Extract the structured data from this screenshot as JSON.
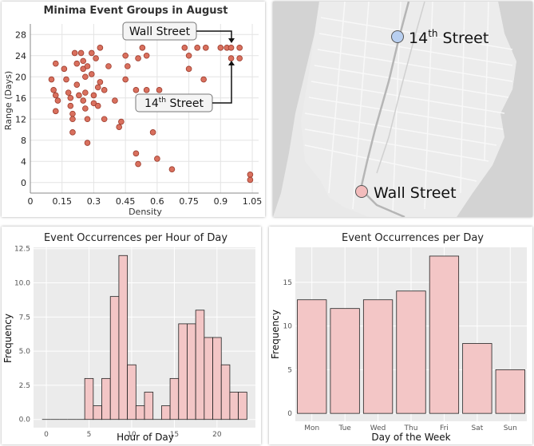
{
  "scatter": {
    "title": "Minima Event Groups in August",
    "xlabel": "Density",
    "ylabel": "Range (Days)",
    "chart_data": {
      "type": "scatter",
      "title": "Minima Event Groups in August",
      "xlabel": "Density",
      "ylabel": "Range (Days)",
      "xlim": [
        0,
        1.08
      ],
      "ylim": [
        -2,
        30
      ],
      "xticks": [
        "0",
        "0.15",
        "0.3",
        "0.45",
        "0.6",
        "0.75",
        "0.9",
        "1.05"
      ],
      "xtick_values": [
        0,
        0.15,
        0.3,
        0.45,
        0.6,
        0.75,
        0.9,
        1.05
      ],
      "yticks": [
        "0",
        "4",
        "8",
        "12",
        "16",
        "20",
        "24",
        "28"
      ],
      "ytick_values": [
        0,
        4,
        8,
        12,
        16,
        20,
        24,
        28
      ],
      "color": "#d9705e",
      "points": [
        [
          0.1,
          19.5
        ],
        [
          0.12,
          22.5
        ],
        [
          0.11,
          17.5
        ],
        [
          0.12,
          16.5
        ],
        [
          0.13,
          15.5
        ],
        [
          0.12,
          13.5
        ],
        [
          0.16,
          21.5
        ],
        [
          0.17,
          19.5
        ],
        [
          0.18,
          17.0
        ],
        [
          0.19,
          16.0
        ],
        [
          0.19,
          14.5
        ],
        [
          0.2,
          13.0
        ],
        [
          0.2,
          12.0
        ],
        [
          0.2,
          9.5
        ],
        [
          0.21,
          24.5
        ],
        [
          0.22,
          22.5
        ],
        [
          0.22,
          18.5
        ],
        [
          0.23,
          16.5
        ],
        [
          0.24,
          24.5
        ],
        [
          0.25,
          23.0
        ],
        [
          0.25,
          21.5
        ],
        [
          0.25,
          15.5
        ],
        [
          0.26,
          20.0
        ],
        [
          0.26,
          17.0
        ],
        [
          0.26,
          14.0
        ],
        [
          0.27,
          22.0
        ],
        [
          0.27,
          12.0
        ],
        [
          0.27,
          7.5
        ],
        [
          0.29,
          24.5
        ],
        [
          0.29,
          20.5
        ],
        [
          0.3,
          16.5
        ],
        [
          0.3,
          15.0
        ],
        [
          0.31,
          23.5
        ],
        [
          0.32,
          18.0
        ],
        [
          0.32,
          14.5
        ],
        [
          0.33,
          25.5
        ],
        [
          0.33,
          19.0
        ],
        [
          0.35,
          17.5
        ],
        [
          0.35,
          12.0
        ],
        [
          0.37,
          22.0
        ],
        [
          0.4,
          15.5
        ],
        [
          0.42,
          10.5
        ],
        [
          0.43,
          11.5
        ],
        [
          0.45,
          24.0
        ],
        [
          0.45,
          19.5
        ],
        [
          0.46,
          22.0
        ],
        [
          0.5,
          17.5
        ],
        [
          0.5,
          5.5
        ],
        [
          0.51,
          23.5
        ],
        [
          0.51,
          3.5
        ],
        [
          0.53,
          25.5
        ],
        [
          0.54,
          14.0
        ],
        [
          0.55,
          24.0
        ],
        [
          0.55,
          17.5
        ],
        [
          0.58,
          9.5
        ],
        [
          0.6,
          4.5
        ],
        [
          0.61,
          17.5
        ],
        [
          0.67,
          2.5
        ],
        [
          0.73,
          25.5
        ],
        [
          0.75,
          24.0
        ],
        [
          0.75,
          21.5
        ],
        [
          0.79,
          25.5
        ],
        [
          0.82,
          19.5
        ],
        [
          0.83,
          25.5
        ],
        [
          0.9,
          25.5
        ],
        [
          0.93,
          25.5
        ],
        [
          0.95,
          25.5
        ],
        [
          0.95,
          23.5
        ],
        [
          0.99,
          25.5
        ],
        [
          0.99,
          23.5
        ],
        [
          1.04,
          1.5
        ],
        [
          1.04,
          0.5
        ]
      ],
      "annotations": [
        {
          "text": "Wall Street",
          "points_to": [
            0.99,
            25.5
          ]
        },
        {
          "text": "14th Street",
          "points_to": [
            0.99,
            23.5
          ]
        }
      ]
    },
    "annotation_wall": "Wall Street",
    "annotation_14_base": "14",
    "annotation_14_sup": "th",
    "annotation_14_rest": " Street"
  },
  "map": {
    "label_14_base": "14",
    "label_14_sup": "th",
    "label_14_rest": " Street",
    "label_wall": "Wall Street",
    "marker_14_color": "#b8cff0",
    "marker_wall_color": "#f3bcbc",
    "street_labels": []
  },
  "hourly": {
    "title": "Event Occurrences per Hour of Day",
    "xlabel": "Hour of Day",
    "ylabel": "Frequency",
    "chart_data": {
      "type": "bar",
      "title": "Event Occurrences per Hour of Day",
      "xlabel": "Hour of Day",
      "ylabel": "Frequency",
      "categories": [
        0,
        1,
        2,
        3,
        4,
        5,
        6,
        7,
        8,
        9,
        10,
        11,
        12,
        13,
        14,
        15,
        16,
        17,
        18,
        19,
        20,
        21,
        22,
        23
      ],
      "values": [
        0,
        0,
        0,
        0,
        0,
        3,
        1,
        3,
        9,
        12,
        4,
        1,
        2,
        0,
        1,
        3,
        7,
        7,
        8,
        6,
        6,
        4,
        2,
        2
      ],
      "xlim": [
        -1.5,
        24.5
      ],
      "ylim": [
        -0.6,
        12.6
      ],
      "xticks": [
        "0",
        "5",
        "10",
        "15",
        "20"
      ],
      "xtick_values": [
        0,
        5,
        10,
        15,
        20
      ],
      "yticks": [
        "0.0",
        "2.5",
        "5.0",
        "7.5",
        "10.0",
        "12.5"
      ],
      "ytick_values": [
        0,
        2.5,
        5,
        7.5,
        10,
        12.5
      ],
      "bar_color": "#f3c6c6"
    }
  },
  "daily": {
    "title": "Event Occurrences per Day",
    "xlabel": "Day of the Week",
    "ylabel": "Frequency",
    "chart_data": {
      "type": "bar",
      "title": "Event Occurrences per Day",
      "xlabel": "Day of the Week",
      "ylabel": "Frequency",
      "categories": [
        "Mon",
        "Tue",
        "Wed",
        "Thu",
        "Fri",
        "Sat",
        "Sun"
      ],
      "values": [
        13,
        12,
        13,
        14,
        18,
        8,
        5
      ],
      "ylim": [
        -0.9,
        19
      ],
      "yticks": [
        "0",
        "5",
        "10",
        "15"
      ],
      "ytick_values": [
        0,
        5,
        10,
        15
      ],
      "bar_color": "#f3c6c6"
    }
  }
}
